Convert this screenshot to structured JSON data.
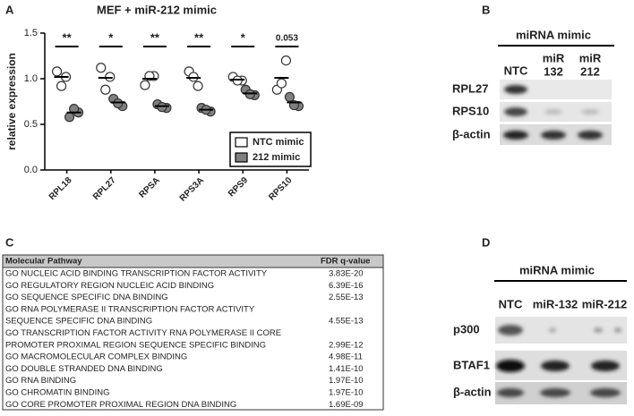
{
  "panel_labels": [
    "A",
    "B",
    "C",
    "D"
  ],
  "chart_data": {
    "type": "dot",
    "title": "MEF + miR-212 mimic",
    "y_label": "relative expression",
    "categories": [
      "RPL18",
      "RPL27",
      "RPSA",
      "RPS3A",
      "RPS9",
      "RPS10"
    ],
    "series": [
      {
        "name": "NTC mimic",
        "color": "#ffffff",
        "values": [
          [
            1.08,
            1.02,
            0.92
          ],
          [
            1.12,
            1.02,
            0.88
          ],
          [
            0.93,
            1.03,
            1.03
          ],
          [
            1.08,
            0.92,
            1.02
          ],
          [
            1.02,
            0.98,
            0.98
          ],
          [
            0.88,
            1.2,
            0.95
          ]
        ],
        "means": [
          1.02,
          1.01,
          1.0,
          1.01,
          0.99,
          1.01
        ]
      },
      {
        "name": "212 mimic",
        "color": "#808080",
        "values": [
          [
            0.58,
            0.63,
            0.67
          ],
          [
            0.78,
            0.7,
            0.73
          ],
          [
            0.72,
            0.68,
            0.69
          ],
          [
            0.68,
            0.64,
            0.66
          ],
          [
            0.88,
            0.82,
            0.83
          ],
          [
            0.8,
            0.7,
            0.71
          ]
        ],
        "means": [
          0.63,
          0.74,
          0.7,
          0.66,
          0.84,
          0.74
        ]
      }
    ],
    "significance": [
      "**",
      "*",
      "**",
      "**",
      "*",
      "0.053"
    ],
    "ylim": [
      0,
      1.5
    ],
    "yticks": [
      {
        "value": 0,
        "label": "0.0"
      },
      0.5,
      {
        "value": 1,
        "label": "1.0"
      },
      1.5
    ]
  },
  "blot_b": {
    "header": "miRNA mimic",
    "columns": [
      [
        "NTC"
      ],
      [
        "miR",
        "132"
      ],
      [
        "miR",
        "212"
      ]
    ],
    "rows": [
      "RPL27",
      "RPS10",
      "β-actin"
    ]
  },
  "table": {
    "headers": [
      "Molecular Pathway",
      "FDR q-value"
    ],
    "rows": [
      [
        [
          "GO NUCLEIC ACID BINDING TRANSCRIPTION FACTOR ACTIVITY"
        ],
        "3.83E-20"
      ],
      [
        [
          "GO REGULATORY REGION NUCLEIC ACID BINDING"
        ],
        "6.39E-16"
      ],
      [
        [
          "GO SEQUENCE SPECIFIC DNA BINDING"
        ],
        "2.55E-13"
      ],
      [
        [
          "GO RNA POLYMERASE II TRANSCRIPTION FACTOR ACTIVITY",
          "SEQUENCE SPECIFIC DNA BINDING"
        ],
        "4.55E-13"
      ],
      [
        [
          "GO TRANSCRIPTION FACTOR ACTIVITY RNA POLYMERASE II CORE",
          "PROMOTER PROXIMAL REGION SEQUENCE SPECIFIC BINDING"
        ],
        "2.99E-12"
      ],
      [
        [
          "GO MACROMOLECULAR COMPLEX BINDING"
        ],
        "4.98E-11"
      ],
      [
        [
          "GO DOUBLE STRANDED DNA BINDING"
        ],
        "1.41E-10"
      ],
      [
        [
          "GO RNA BINDING"
        ],
        "1.97E-10"
      ],
      [
        [
          "GO CHROMATIN BINDING"
        ],
        "1.97E-10"
      ],
      [
        [
          "GO CORE PROMOTER PROXIMAL REGION DNA BINDING"
        ],
        "1.69E-09"
      ]
    ]
  },
  "blot_d": {
    "header": "miRNA mimic",
    "columns": [
      "NTC",
      "miR-132",
      "miR-212"
    ],
    "rows": [
      "p300",
      "BTAF1",
      "β-actin"
    ]
  }
}
